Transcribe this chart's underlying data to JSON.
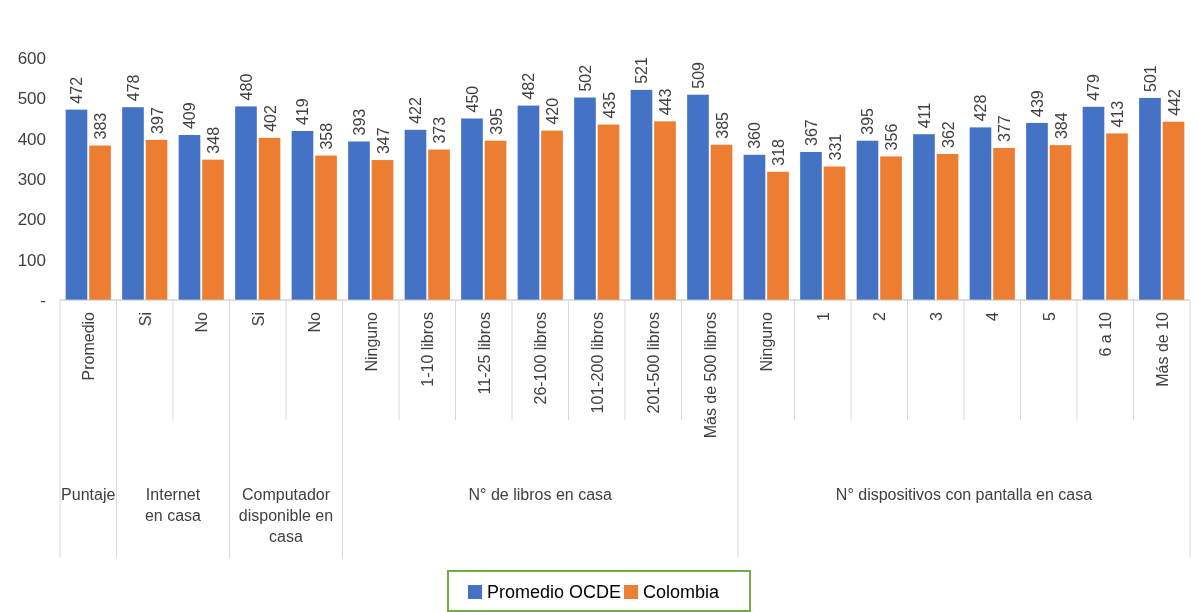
{
  "chart_data": {
    "type": "bar",
    "categories": [
      "Promedio",
      "Si",
      "No",
      "Si",
      "No",
      "Ninguno",
      "1-10 libros",
      "11-25 libros",
      "26-100 libros",
      "101-200 libros",
      "201-500 libros",
      "Más de 500 libros",
      "Ninguno",
      "1",
      "2",
      "3",
      "4",
      "5",
      "6 a 10",
      "Más de 10"
    ],
    "series": [
      {
        "name": "Promedio OCDE",
        "color": "#4472c4",
        "values": [
          472,
          478,
          409,
          480,
          419,
          393,
          422,
          450,
          482,
          502,
          521,
          509,
          360,
          367,
          395,
          411,
          428,
          439,
          479,
          501
        ]
      },
      {
        "name": "Colombia",
        "color": "#ed7d31",
        "values": [
          383,
          397,
          348,
          402,
          358,
          347,
          373,
          395,
          420,
          435,
          443,
          385,
          318,
          331,
          356,
          362,
          377,
          384,
          413,
          442
        ]
      }
    ],
    "ylim": [
      0,
      600
    ],
    "yticks": [
      {
        "value": 0,
        "label": "-"
      },
      100,
      200,
      300,
      400,
      500,
      600
    ],
    "grid": false,
    "legend": "bottom",
    "data_labels": true,
    "annotations": [
      "Puntaje",
      "Internet en casa",
      "Computador disponible en casa",
      "N° de libros en casa",
      "N° dispositivos con pantalla en casa"
    ]
  }
}
